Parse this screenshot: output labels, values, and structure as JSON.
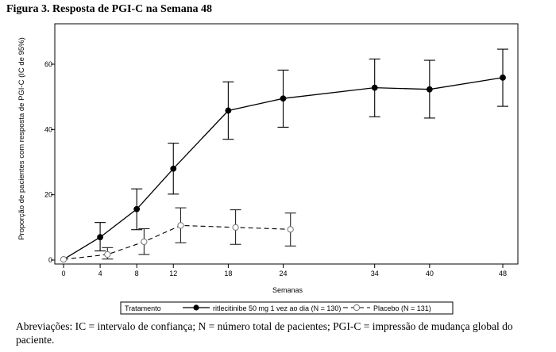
{
  "figure_title": "Figura 3. Resposta de PGI-C na Semana 48",
  "footnote": "Abreviações: IC = intervalo de confiança; N = número total de pacientes; PGI-C = impressão de mudança global do paciente.",
  "chart_data": {
    "type": "line",
    "xlabel": "Semanas",
    "ylabel": "Proporção de pacientes com resposta de PGI-C (IC de 95%)",
    "xticks": [
      0,
      4,
      8,
      12,
      18,
      24,
      34,
      40,
      48
    ],
    "xlim": [
      0,
      49
    ],
    "yticks": [
      0,
      20,
      40,
      60
    ],
    "ylim": [
      -1,
      72
    ],
    "grid": false,
    "legend": {
      "title": "Tratamento",
      "position": "bottom"
    },
    "series": [
      {
        "name": "ritlecitinibe 50 mg 1 vez ao dia (N = 130)",
        "line_style": "solid",
        "marker": "filled-circle",
        "x": [
          0,
          4,
          8,
          12,
          18,
          24,
          34,
          40,
          48
        ],
        "y": [
          0.2,
          7.0,
          15.6,
          28.0,
          45.8,
          49.5,
          52.8,
          52.3,
          55.9
        ],
        "lower": [
          0.2,
          2.8,
          9.3,
          20.2,
          37.0,
          40.7,
          43.9,
          43.5,
          47.1
        ],
        "upper": [
          0.2,
          11.5,
          21.8,
          35.8,
          54.6,
          58.2,
          61.6,
          61.2,
          64.6
        ]
      },
      {
        "name": "Placebo (N = 131)",
        "line_style": "dashed",
        "marker": "open-circle",
        "x": [
          0,
          4.8,
          8.8,
          12.8,
          18.8,
          24.8
        ],
        "y": [
          0.2,
          1.7,
          5.6,
          10.6,
          10.0,
          9.4
        ],
        "lower": [
          0.2,
          0.3,
          1.7,
          5.3,
          4.8,
          4.3
        ],
        "upper": [
          0.2,
          3.8,
          9.6,
          16.0,
          15.4,
          14.4
        ]
      }
    ]
  }
}
